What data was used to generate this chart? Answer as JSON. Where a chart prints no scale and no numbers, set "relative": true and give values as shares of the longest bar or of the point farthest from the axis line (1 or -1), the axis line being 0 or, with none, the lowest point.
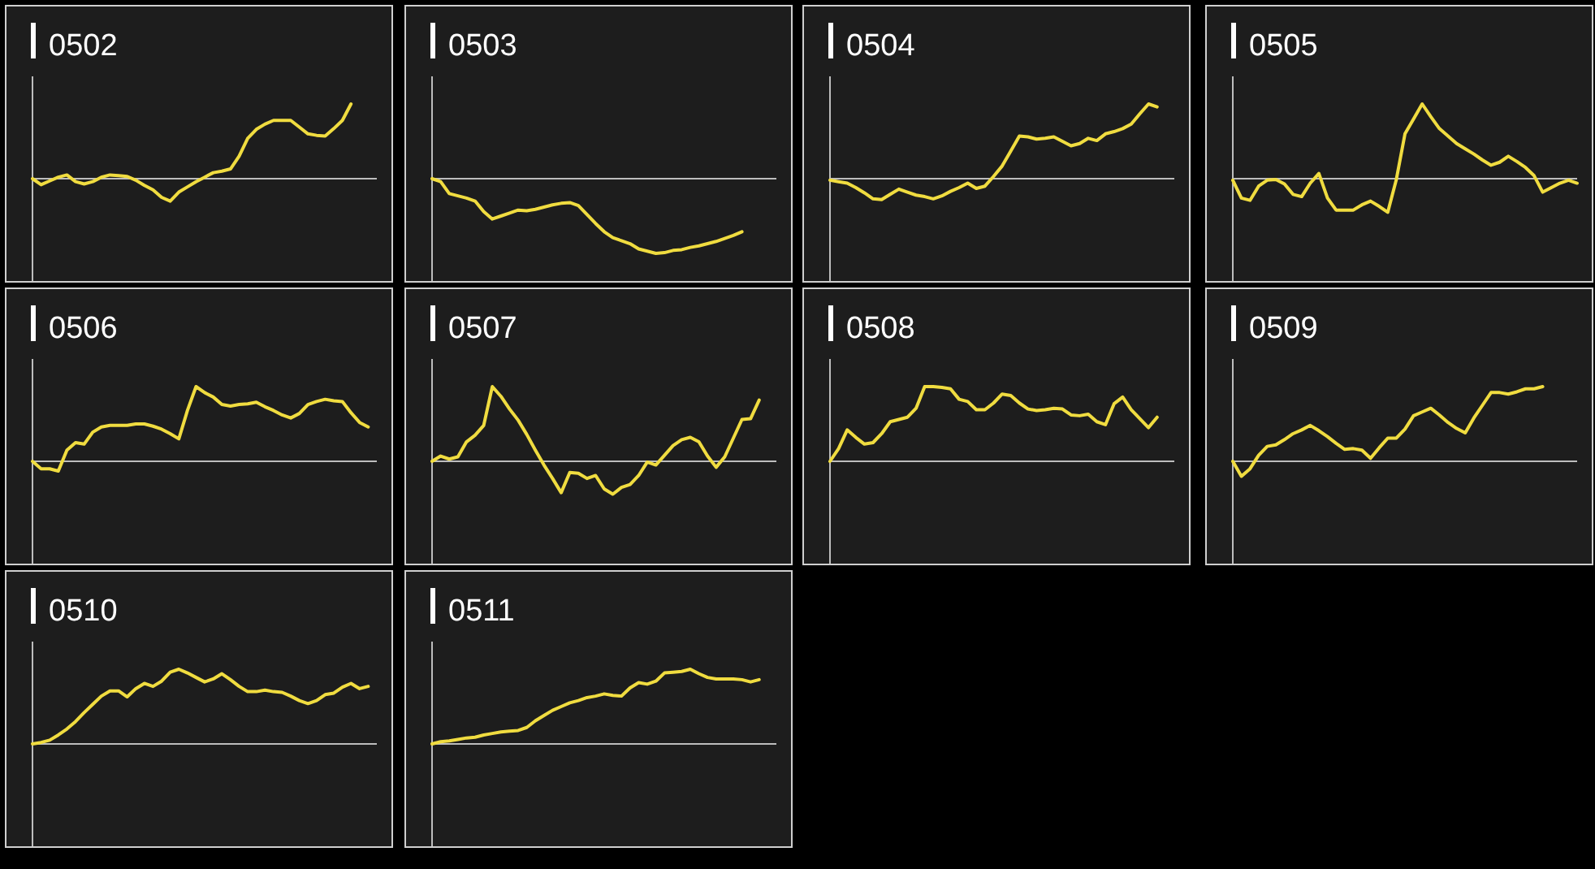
{
  "chart_data": [
    {
      "type": "line",
      "title": "0502",
      "relative": true,
      "color": "#f0dc40",
      "categories": [
        null,
        null,
        null,
        null,
        null,
        null,
        null,
        null,
        null,
        null,
        null,
        null,
        null,
        null,
        null,
        null,
        null,
        null,
        null,
        null,
        null,
        null,
        null,
        null,
        null,
        null,
        null,
        null,
        null,
        null,
        null,
        null,
        null,
        null,
        null,
        null,
        null,
        null,
        null,
        null,
        null
      ],
      "values": [
        0,
        -0.08,
        -0.03,
        0.02,
        0.05,
        -0.04,
        -0.07,
        -0.04,
        0.02,
        0.05,
        0.04,
        0.03,
        -0.02,
        -0.09,
        -0.15,
        -0.25,
        -0.3,
        -0.18,
        -0.11,
        -0.04,
        0.02,
        0.08,
        0.1,
        0.13,
        0.3,
        0.54,
        0.66,
        0.73,
        0.78,
        0.78,
        0.78,
        0.69,
        0.6,
        0.58,
        0.57,
        0.67,
        0.78,
        1,
        null,
        null,
        null
      ]
    },
    {
      "type": "line",
      "title": "0503",
      "relative": true,
      "color": "#f0dc40",
      "categories": [
        null,
        null,
        null,
        null,
        null,
        null,
        null,
        null,
        null,
        null,
        null,
        null,
        null,
        null,
        null,
        null,
        null,
        null,
        null,
        null,
        null,
        null,
        null,
        null,
        null,
        null,
        null,
        null,
        null,
        null,
        null,
        null,
        null,
        null,
        null,
        null,
        null,
        null,
        null,
        null,
        null
      ],
      "values": [
        0,
        -0.04,
        -0.2,
        -0.23,
        -0.26,
        -0.3,
        -0.44,
        -0.54,
        -0.5,
        -0.46,
        -0.42,
        -0.43,
        -0.41,
        -0.38,
        -0.35,
        -0.33,
        -0.32,
        -0.36,
        -0.48,
        -0.6,
        -0.71,
        -0.79,
        -0.83,
        -0.87,
        -0.94,
        -0.97,
        -1,
        -0.99,
        -0.96,
        -0.95,
        -0.92,
        -0.9,
        -0.87,
        -0.84,
        -0.8,
        -0.76,
        -0.71,
        null,
        null,
        null,
        null
      ]
    },
    {
      "type": "line",
      "title": "0504",
      "relative": true,
      "color": "#f0dc40",
      "categories": [
        null,
        null,
        null,
        null,
        null,
        null,
        null,
        null,
        null,
        null,
        null,
        null,
        null,
        null,
        null,
        null,
        null,
        null,
        null,
        null,
        null,
        null,
        null,
        null,
        null,
        null,
        null,
        null,
        null,
        null,
        null,
        null,
        null,
        null,
        null,
        null,
        null,
        null,
        null,
        null,
        null
      ],
      "values": [
        -0.02,
        -0.04,
        -0.06,
        -0.12,
        -0.19,
        -0.27,
        -0.28,
        -0.21,
        -0.14,
        -0.18,
        -0.22,
        -0.24,
        -0.27,
        -0.23,
        -0.17,
        -0.12,
        -0.06,
        -0.13,
        -0.1,
        0.03,
        0.17,
        0.37,
        0.57,
        0.56,
        0.53,
        0.54,
        0.56,
        0.5,
        0.44,
        0.47,
        0.54,
        0.51,
        0.6,
        0.63,
        0.67,
        0.73,
        0.87,
        1,
        0.96,
        null,
        null
      ]
    },
    {
      "type": "line",
      "title": "0505",
      "relative": true,
      "color": "#f0dc40",
      "categories": [
        null,
        null,
        null,
        null,
        null,
        null,
        null,
        null,
        null,
        null,
        null,
        null,
        null,
        null,
        null,
        null,
        null,
        null,
        null,
        null,
        null,
        null,
        null,
        null,
        null,
        null,
        null,
        null,
        null,
        null,
        null,
        null,
        null,
        null,
        null,
        null,
        null,
        null,
        null,
        null,
        null
      ],
      "values": [
        -0.02,
        -0.26,
        -0.29,
        -0.1,
        -0.02,
        -0.01,
        -0.07,
        -0.21,
        -0.24,
        -0.06,
        0.07,
        -0.26,
        -0.42,
        -0.42,
        -0.42,
        -0.35,
        -0.3,
        -0.37,
        -0.45,
        -0.01,
        0.6,
        0.8,
        1,
        0.83,
        0.67,
        0.57,
        0.47,
        0.4,
        0.33,
        0.25,
        0.18,
        0.22,
        0.3,
        0.23,
        0.15,
        0.04,
        -0.18,
        -0.12,
        -0.06,
        -0.02,
        -0.06
      ]
    },
    {
      "type": "line",
      "title": "0506",
      "relative": true,
      "color": "#f0dc40",
      "categories": [
        null,
        null,
        null,
        null,
        null,
        null,
        null,
        null,
        null,
        null,
        null,
        null,
        null,
        null,
        null,
        null,
        null,
        null,
        null,
        null,
        null,
        null,
        null,
        null,
        null,
        null,
        null,
        null,
        null,
        null,
        null,
        null,
        null,
        null,
        null,
        null,
        null,
        null,
        null,
        null,
        null
      ],
      "values": [
        0,
        -0.1,
        -0.1,
        -0.13,
        0.15,
        0.25,
        0.23,
        0.39,
        0.46,
        0.48,
        0.48,
        0.48,
        0.5,
        0.5,
        0.47,
        0.43,
        0.37,
        0.3,
        0.68,
        1,
        0.92,
        0.86,
        0.76,
        0.74,
        0.76,
        0.77,
        0.79,
        0.73,
        0.68,
        0.62,
        0.58,
        0.64,
        0.76,
        0.8,
        0.83,
        0.81,
        0.8,
        0.65,
        0.52,
        0.46,
        null
      ]
    },
    {
      "type": "line",
      "title": "0507",
      "relative": true,
      "color": "#f0dc40",
      "categories": [
        null,
        null,
        null,
        null,
        null,
        null,
        null,
        null,
        null,
        null,
        null,
        null,
        null,
        null,
        null,
        null,
        null,
        null,
        null,
        null,
        null,
        null,
        null,
        null,
        null,
        null,
        null,
        null,
        null,
        null,
        null,
        null,
        null,
        null,
        null,
        null,
        null,
        null,
        null,
        null,
        null
      ],
      "values": [
        0,
        0.07,
        0.03,
        0.06,
        0.26,
        0.35,
        0.48,
        1,
        0.87,
        0.7,
        0.55,
        0.36,
        0.15,
        -0.05,
        -0.23,
        -0.42,
        -0.15,
        -0.16,
        -0.23,
        -0.19,
        -0.37,
        -0.44,
        -0.35,
        -0.31,
        -0.19,
        -0.01,
        -0.05,
        0.08,
        0.21,
        0.29,
        0.32,
        0.26,
        0.07,
        -0.08,
        0.06,
        0.31,
        0.56,
        0.57,
        0.82,
        null,
        null
      ]
    },
    {
      "type": "line",
      "title": "0508",
      "relative": true,
      "color": "#f0dc40",
      "categories": [
        null,
        null,
        null,
        null,
        null,
        null,
        null,
        null,
        null,
        null,
        null,
        null,
        null,
        null,
        null,
        null,
        null,
        null,
        null,
        null,
        null,
        null,
        null,
        null,
        null,
        null,
        null,
        null,
        null,
        null,
        null,
        null,
        null,
        null,
        null,
        null,
        null,
        null,
        null,
        null,
        null
      ],
      "values": [
        0,
        0.17,
        0.42,
        0.32,
        0.23,
        0.25,
        0.37,
        0.53,
        0.56,
        0.59,
        0.71,
        1,
        1,
        0.99,
        0.97,
        0.83,
        0.8,
        0.69,
        0.69,
        0.78,
        0.9,
        0.88,
        0.78,
        0.7,
        0.68,
        0.69,
        0.71,
        0.7,
        0.62,
        0.61,
        0.63,
        0.53,
        0.49,
        0.77,
        0.86,
        0.69,
        0.57,
        0.45,
        0.59,
        null,
        null
      ]
    },
    {
      "type": "line",
      "title": "0509",
      "relative": true,
      "color": "#f0dc40",
      "categories": [
        null,
        null,
        null,
        null,
        null,
        null,
        null,
        null,
        null,
        null,
        null,
        null,
        null,
        null,
        null,
        null,
        null,
        null,
        null,
        null,
        null,
        null,
        null,
        null,
        null,
        null,
        null,
        null,
        null,
        null,
        null,
        null,
        null,
        null,
        null,
        null,
        null,
        null,
        null,
        null,
        null
      ],
      "values": [
        0,
        -0.2,
        -0.1,
        0.08,
        0.2,
        0.22,
        0.29,
        0.37,
        0.42,
        0.48,
        0.41,
        0.33,
        0.24,
        0.16,
        0.17,
        0.15,
        0.04,
        0.18,
        0.31,
        0.31,
        0.43,
        0.61,
        0.66,
        0.71,
        0.62,
        0.52,
        0.44,
        0.38,
        0.58,
        0.75,
        0.92,
        0.92,
        0.9,
        0.93,
        0.97,
        0.97,
        1,
        null,
        null,
        null,
        null
      ]
    },
    {
      "type": "line",
      "title": "0510",
      "relative": true,
      "color": "#f0dc40",
      "categories": [
        null,
        null,
        null,
        null,
        null,
        null,
        null,
        null,
        null,
        null,
        null,
        null,
        null,
        null,
        null,
        null,
        null,
        null,
        null,
        null,
        null,
        null,
        null,
        null,
        null,
        null,
        null,
        null,
        null,
        null,
        null,
        null,
        null,
        null,
        null,
        null,
        null,
        null,
        null,
        null,
        null
      ],
      "values": [
        0,
        0.02,
        0.05,
        0.12,
        0.2,
        0.3,
        0.42,
        0.53,
        0.64,
        0.71,
        0.71,
        0.63,
        0.74,
        0.81,
        0.77,
        0.84,
        0.96,
        1,
        0.95,
        0.89,
        0.83,
        0.87,
        0.94,
        0.86,
        0.77,
        0.7,
        0.7,
        0.72,
        0.7,
        0.69,
        0.64,
        0.58,
        0.54,
        0.58,
        0.66,
        0.68,
        0.76,
        0.81,
        0.74,
        0.77,
        null
      ]
    },
    {
      "type": "line",
      "title": "0511",
      "relative": true,
      "color": "#f0dc40",
      "categories": [
        null,
        null,
        null,
        null,
        null,
        null,
        null,
        null,
        null,
        null,
        null,
        null,
        null,
        null,
        null,
        null,
        null,
        null,
        null,
        null,
        null,
        null,
        null,
        null,
        null,
        null,
        null,
        null,
        null,
        null,
        null,
        null,
        null,
        null,
        null,
        null,
        null,
        null,
        null,
        null,
        null
      ],
      "values": [
        0,
        0.03,
        0.04,
        0.06,
        0.08,
        0.09,
        0.12,
        0.14,
        0.16,
        0.17,
        0.18,
        0.22,
        0.31,
        0.38,
        0.45,
        0.5,
        0.55,
        0.58,
        0.62,
        0.64,
        0.67,
        0.65,
        0.64,
        0.75,
        0.82,
        0.8,
        0.84,
        0.95,
        0.96,
        0.97,
        1,
        0.94,
        0.89,
        0.87,
        0.87,
        0.87,
        0.86,
        0.83,
        0.86,
        null,
        null
      ]
    }
  ]
}
